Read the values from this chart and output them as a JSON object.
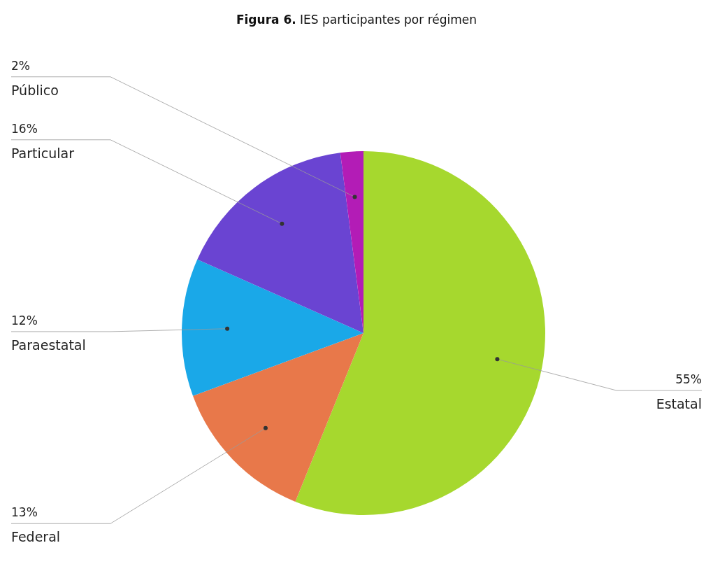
{
  "chart_data": {
    "type": "pie",
    "title": "Figura 6.  IES participantes por régimen",
    "categories": [
      "Estatal",
      "Federal",
      "Paraestatal",
      "Particular",
      "Público"
    ],
    "values": [
      55,
      13,
      12,
      16,
      2
    ],
    "value_labels": [
      "55%",
      "13%",
      "12%",
      "16%",
      "2%"
    ],
    "colors": [
      "#a6d82e",
      "#e8784a",
      "#1aa8e8",
      "#6a44d2",
      "#b31cb6"
    ]
  }
}
